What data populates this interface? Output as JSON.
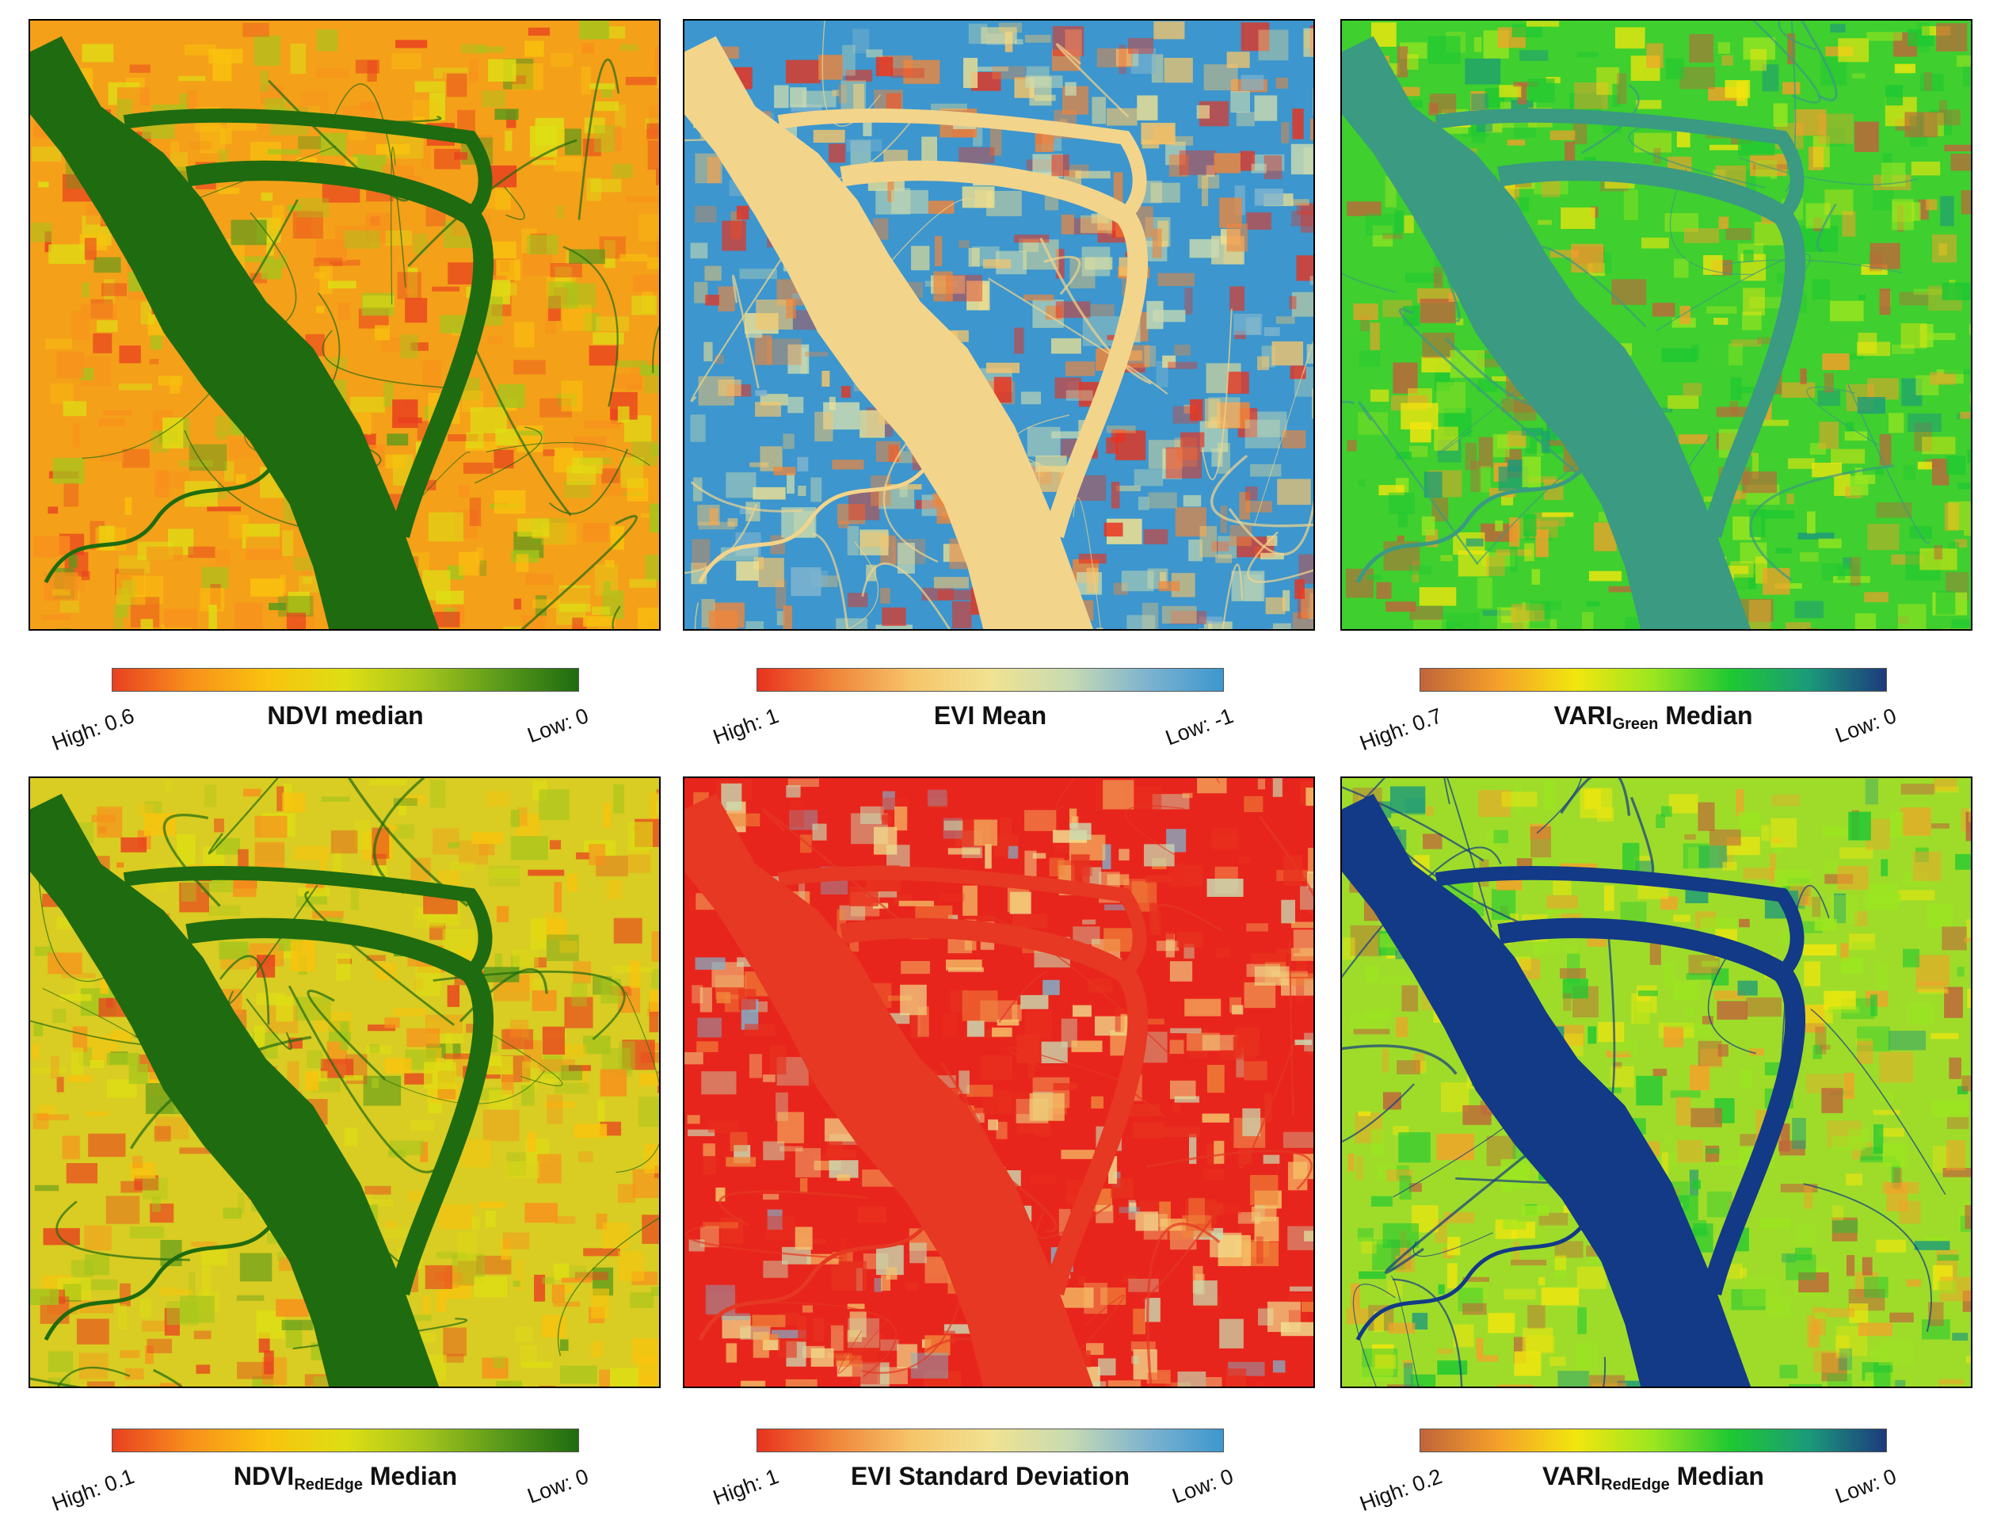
{
  "panels": [
    {
      "id": "ndvi-median",
      "title": "NDVI median",
      "title_main": "NDVI median",
      "title_sub": "",
      "title_rest": "",
      "high": "High: 0.6",
      "low": "Low: 0",
      "palette": "ndvi",
      "colors": [
        "#e8411f",
        "#f8901c",
        "#f9c30e",
        "#dede14",
        "#a5c51c",
        "#5a9a1a",
        "#1f6b10"
      ],
      "base": "#f4a019",
      "river": "#1f6b0f"
    },
    {
      "id": "evi-mean",
      "title": "EVI Mean",
      "title_main": "EVI Mean",
      "title_sub": "",
      "title_rest": "",
      "high": "High: 1",
      "low": "Low: -1",
      "palette": "evi",
      "colors": [
        "#e8321e",
        "#f0863a",
        "#f6c56a",
        "#f1e291",
        "#c9dbb1",
        "#7fb4cf",
        "#3c97cf"
      ],
      "base": "#3d96cd",
      "river": "#f3d48b"
    },
    {
      "id": "vari-green-median",
      "title": "VARI Green Median",
      "title_main": "VARI",
      "title_sub": "Green",
      "title_rest": " Median",
      "high": "High: 0.7",
      "low": "Low: 0",
      "palette": "vari",
      "colors": [
        "#c0643a",
        "#f5a02a",
        "#f2e60e",
        "#9be620",
        "#1ec832",
        "#1b9a7a",
        "#1c3a7d"
      ],
      "base": "#3fcf2f",
      "river": "#3a9a82"
    },
    {
      "id": "ndvi-rededge-median",
      "title": "NDVI RedEdge Median",
      "title_main": "NDVI",
      "title_sub": "RedEdge",
      "title_rest": " Median",
      "high": "High: 0.1",
      "low": "Low: 0",
      "palette": "ndvi",
      "colors": [
        "#e8411f",
        "#f8901c",
        "#f9c30e",
        "#dede14",
        "#a5c51c",
        "#5a9a1a",
        "#1f6b10"
      ],
      "base": "#d9cc22",
      "river": "#1f6b0f"
    },
    {
      "id": "evi-standard-deviation",
      "title": "EVI Standard Deviation",
      "title_main": "EVI Standard Deviation",
      "title_sub": "",
      "title_rest": "",
      "high": "High: 1",
      "low": "Low: 0",
      "palette": "evi",
      "colors": [
        "#e8321e",
        "#f0863a",
        "#f6c56a",
        "#f1e291",
        "#c9dbb1",
        "#7fb4cf",
        "#3c97cf"
      ],
      "base": "#e8251c",
      "river": "#e63822"
    },
    {
      "id": "vari-rededge-median",
      "title": "VARI RedEdge Median",
      "title_main": "VARI",
      "title_sub": "RedEdge",
      "title_rest": " Median",
      "high": "High: 0.2",
      "low": "Low: 0",
      "palette": "vari",
      "colors": [
        "#c0643a",
        "#f5a02a",
        "#f2e60e",
        "#9be620",
        "#1ec832",
        "#1b9a7a",
        "#1c3a7d"
      ],
      "base": "#9fdc2a",
      "river": "#123a86"
    }
  ]
}
